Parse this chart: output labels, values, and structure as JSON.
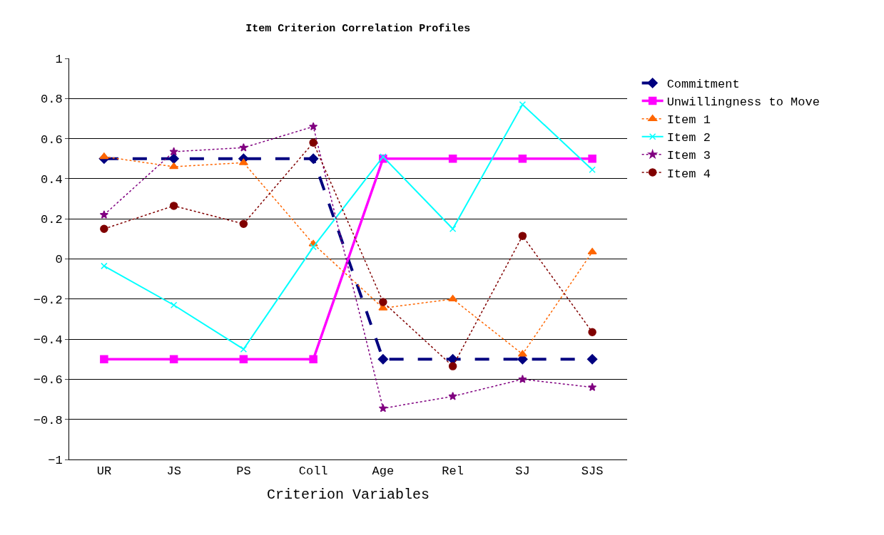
{
  "chart_data": {
    "type": "line",
    "title": "Item Criterion Correlation Profiles",
    "xlabel": "Criterion Variables",
    "categories": [
      "UR",
      "JS",
      "PS",
      "Coll",
      "Age",
      "Rel",
      "SJ",
      "SJS"
    ],
    "series": [
      {
        "name": "Commitment",
        "color": "#000080",
        "values": [
          0.5,
          0.5,
          0.5,
          0.5,
          -0.5,
          -0.5,
          -0.5,
          -0.5
        ],
        "marker": "diamond",
        "line_style": "dashed"
      },
      {
        "name": "Unwillingness to Move",
        "color": "#ff00ff",
        "values": [
          -0.5,
          -0.5,
          -0.5,
          -0.5,
          0.5,
          0.5,
          0.5,
          0.5
        ],
        "marker": "square",
        "line_style": "solid"
      },
      {
        "name": "Item 1",
        "color": "#ff6600",
        "values": [
          0.51,
          0.46,
          0.48,
          0.075,
          -0.245,
          -0.2,
          -0.475,
          0.035
        ],
        "marker": "triangle",
        "line_style": "dotted"
      },
      {
        "name": "Item 2",
        "color": "#00ffff",
        "values": [
          -0.035,
          -0.23,
          -0.45,
          0.06,
          0.51,
          0.15,
          0.77,
          0.445
        ],
        "marker": "cross",
        "line_style": "solid"
      },
      {
        "name": "Item 3",
        "color": "#800080",
        "values": [
          0.22,
          0.535,
          0.555,
          0.66,
          -0.745,
          -0.685,
          -0.6,
          -0.64
        ],
        "marker": "star",
        "line_style": "dotted"
      },
      {
        "name": "Item 4",
        "color": "#800000",
        "values": [
          0.15,
          0.265,
          0.175,
          0.58,
          -0.215,
          -0.535,
          0.115,
          -0.365
        ],
        "marker": "circle",
        "line_style": "dotted"
      }
    ],
    "ylim": [
      -1,
      1
    ],
    "yticks": [
      -1,
      -0.8,
      -0.6,
      -0.4,
      -0.2,
      0,
      0.2,
      0.4,
      0.6,
      0.8,
      1
    ],
    "grid": "y",
    "legend": "right"
  }
}
